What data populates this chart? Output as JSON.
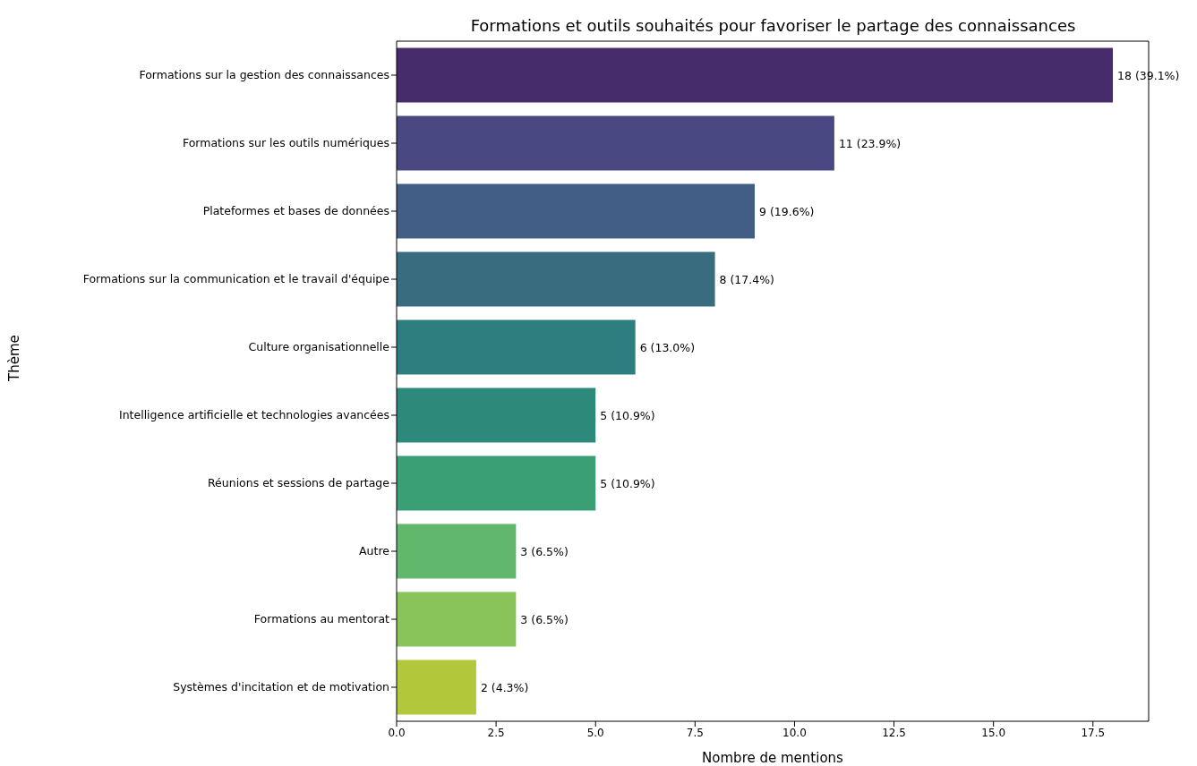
{
  "chart_data": {
    "type": "bar",
    "orientation": "horizontal",
    "title": "Formations et outils souhaités pour favoriser le partage des connaissances",
    "xlabel": "Nombre de mentions",
    "ylabel": "Thème",
    "categories": [
      "Formations sur la gestion des connaissances",
      "Formations sur les outils numériques",
      "Plateformes et bases de données",
      "Formations sur la communication et le travail d'équipe",
      "Culture organisationnelle",
      "Intelligence artificielle et technologies avancées",
      "Réunions et sessions de partage",
      "Autre",
      "Formations au mentorat",
      "Systèmes d'incitation et de motivation"
    ],
    "values": [
      18,
      11,
      9,
      8,
      6,
      5,
      5,
      3,
      3,
      2
    ],
    "colors": [
      "#472c6b",
      "#4a4882",
      "#425e86",
      "#3a6c80",
      "#2f7e7f",
      "#2d8a7b",
      "#3b9f76",
      "#61b76b",
      "#88c45a",
      "#b3c73a"
    ],
    "value_labels": [
      "18 (39.1%)",
      "11 (23.9%)",
      "9 (19.6%)",
      "8 (17.4%)",
      "6 (13.0%)",
      "5 (10.9%)",
      "5 (10.9%)",
      "3 (6.5%)",
      "3 (6.5%)",
      "2 (4.3%)"
    ],
    "xlim": [
      0,
      18.9
    ],
    "xticks": [
      {
        "value": 0,
        "label": "0.0"
      },
      2.5,
      {
        "value": 5,
        "label": "5.0"
      },
      7.5,
      {
        "value": 10,
        "label": "10.0"
      },
      12.5,
      {
        "value": 15,
        "label": "15.0"
      },
      17.5
    ],
    "grid": false
  }
}
